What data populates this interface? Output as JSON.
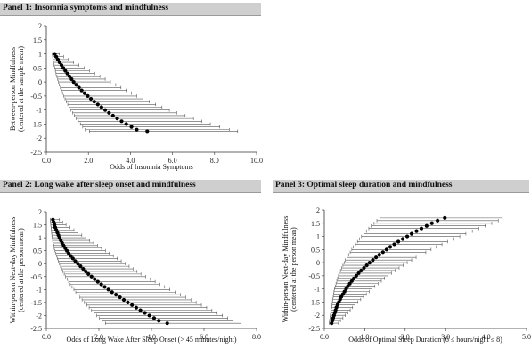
{
  "chart_data": [
    {
      "type": "scatter",
      "title": "Panel 1: Insomnia symptoms and mindfulness",
      "xlabel": "Odds of Insomnia Symptoms",
      "ylabel": [
        "Between-person Mindfulness",
        "(centered at the sample mean)"
      ],
      "xlim": [
        0,
        10
      ],
      "ylim": [
        -2.5,
        2
      ],
      "xticks": [
        "0.0",
        "2.0",
        "4.0",
        "6.0",
        "8.0",
        "10.0"
      ],
      "yticks": [
        "2",
        "1.5",
        "1",
        "0.5",
        "0",
        "-0.5",
        "-1",
        "-1.5",
        "-2",
        "-2.5"
      ],
      "grid": false,
      "series": [
        {
          "points": [
            {
              "y": 1.0,
              "x": 0.4,
              "lo": 0.28,
              "hi": 0.62
            },
            {
              "y": 0.9,
              "x": 0.47,
              "lo": 0.3,
              "hi": 0.82
            },
            {
              "y": 0.8,
              "x": 0.55,
              "lo": 0.32,
              "hi": 1.05
            },
            {
              "y": 0.7,
              "x": 0.63,
              "lo": 0.34,
              "hi": 1.3
            },
            {
              "y": 0.6,
              "x": 0.72,
              "lo": 0.37,
              "hi": 1.55
            },
            {
              "y": 0.5,
              "x": 0.81,
              "lo": 0.4,
              "hi": 1.8
            },
            {
              "y": 0.4,
              "x": 0.9,
              "lo": 0.43,
              "hi": 2.05
            },
            {
              "y": 0.3,
              "x": 1.0,
              "lo": 0.46,
              "hi": 2.3
            },
            {
              "y": 0.2,
              "x": 1.1,
              "lo": 0.5,
              "hi": 2.55
            },
            {
              "y": 0.1,
              "x": 1.2,
              "lo": 0.54,
              "hi": 2.8
            },
            {
              "y": 0.0,
              "x": 1.3,
              "lo": 0.58,
              "hi": 3.05
            },
            {
              "y": -0.1,
              "x": 1.42,
              "lo": 0.62,
              "hi": 3.3
            },
            {
              "y": -0.2,
              "x": 1.55,
              "lo": 0.67,
              "hi": 3.55
            },
            {
              "y": -0.3,
              "x": 1.68,
              "lo": 0.72,
              "hi": 3.8
            },
            {
              "y": -0.4,
              "x": 1.82,
              "lo": 0.77,
              "hi": 4.05
            },
            {
              "y": -0.5,
              "x": 1.97,
              "lo": 0.83,
              "hi": 4.3
            },
            {
              "y": -0.6,
              "x": 2.12,
              "lo": 0.89,
              "hi": 4.6
            },
            {
              "y": -0.7,
              "x": 2.28,
              "lo": 0.95,
              "hi": 4.9
            },
            {
              "y": -0.8,
              "x": 2.45,
              "lo": 1.02,
              "hi": 5.2
            },
            {
              "y": -0.9,
              "x": 2.62,
              "lo": 1.09,
              "hi": 5.5
            },
            {
              "y": -1.0,
              "x": 2.8,
              "lo": 1.17,
              "hi": 5.85
            },
            {
              "y": -1.1,
              "x": 2.98,
              "lo": 1.25,
              "hi": 6.2
            },
            {
              "y": -1.2,
              "x": 3.17,
              "lo": 1.33,
              "hi": 6.6
            },
            {
              "y": -1.3,
              "x": 3.37,
              "lo": 1.42,
              "hi": 7.0
            },
            {
              "y": -1.4,
              "x": 3.58,
              "lo": 1.52,
              "hi": 7.4
            },
            {
              "y": -1.5,
              "x": 3.8,
              "lo": 1.62,
              "hi": 7.8
            },
            {
              "y": -1.6,
              "x": 4.05,
              "lo": 1.73,
              "hi": 8.25
            },
            {
              "y": -1.7,
              "x": 4.3,
              "lo": 1.85,
              "hi": 8.7
            },
            {
              "y": -1.75,
              "x": 4.8,
              "lo": 2.05,
              "hi": 9.1
            }
          ]
        }
      ]
    },
    {
      "type": "scatter",
      "title": "Panel 2: Long wake after sleep onset and mindfulness",
      "xlabel": "Odds of Long Wake After Sleep Onset (> 45 minutes/night)",
      "ylabel": [
        "Within-person Next-day Mindfulness",
        "(centered at the person mean)"
      ],
      "xlim": [
        0,
        8
      ],
      "ylim": [
        -2.5,
        2
      ],
      "xticks": [
        "0.0",
        "2.0",
        "4.0",
        "6.0",
        "8.0"
      ],
      "yticks": [
        "2",
        "1.5",
        "1",
        "0.5",
        "0",
        "-0.5",
        "-1",
        "-1.5",
        "-2",
        "-2.5"
      ],
      "grid": false,
      "series": [
        {
          "points": [
            {
              "y": 1.7,
              "x": 0.25,
              "lo": 0.15,
              "hi": 0.5
            },
            {
              "y": 1.6,
              "x": 0.28,
              "lo": 0.16,
              "hi": 0.62
            },
            {
              "y": 1.5,
              "x": 0.31,
              "lo": 0.17,
              "hi": 0.75
            },
            {
              "y": 1.4,
              "x": 0.34,
              "lo": 0.18,
              "hi": 0.9
            },
            {
              "y": 1.3,
              "x": 0.38,
              "lo": 0.19,
              "hi": 1.05
            },
            {
              "y": 1.2,
              "x": 0.42,
              "lo": 0.2,
              "hi": 1.2
            },
            {
              "y": 1.1,
              "x": 0.46,
              "lo": 0.21,
              "hi": 1.35
            },
            {
              "y": 1.0,
              "x": 0.5,
              "lo": 0.22,
              "hi": 1.5
            },
            {
              "y": 0.9,
              "x": 0.55,
              "lo": 0.24,
              "hi": 1.65
            },
            {
              "y": 0.8,
              "x": 0.6,
              "lo": 0.26,
              "hi": 1.8
            },
            {
              "y": 0.7,
              "x": 0.66,
              "lo": 0.28,
              "hi": 1.95
            },
            {
              "y": 0.6,
              "x": 0.72,
              "lo": 0.3,
              "hi": 2.1
            },
            {
              "y": 0.5,
              "x": 0.78,
              "lo": 0.33,
              "hi": 2.25
            },
            {
              "y": 0.4,
              "x": 0.85,
              "lo": 0.36,
              "hi": 2.4
            },
            {
              "y": 0.3,
              "x": 0.93,
              "lo": 0.39,
              "hi": 2.55
            },
            {
              "y": 0.2,
              "x": 1.01,
              "lo": 0.42,
              "hi": 2.7
            },
            {
              "y": 0.1,
              "x": 1.1,
              "lo": 0.46,
              "hi": 2.85
            },
            {
              "y": 0.0,
              "x": 1.2,
              "lo": 0.5,
              "hi": 3.0
            },
            {
              "y": -0.1,
              "x": 1.3,
              "lo": 0.54,
              "hi": 3.15
            },
            {
              "y": -0.2,
              "x": 1.4,
              "lo": 0.58,
              "hi": 3.3
            },
            {
              "y": -0.3,
              "x": 1.5,
              "lo": 0.63,
              "hi": 3.45
            },
            {
              "y": -0.4,
              "x": 1.6,
              "lo": 0.68,
              "hi": 3.6
            },
            {
              "y": -0.5,
              "x": 1.72,
              "lo": 0.73,
              "hi": 3.78
            },
            {
              "y": -0.6,
              "x": 1.84,
              "lo": 0.79,
              "hi": 3.96
            },
            {
              "y": -0.7,
              "x": 1.96,
              "lo": 0.85,
              "hi": 4.14
            },
            {
              "y": -0.8,
              "x": 2.09,
              "lo": 0.91,
              "hi": 4.32
            },
            {
              "y": -0.9,
              "x": 2.22,
              "lo": 0.98,
              "hi": 4.5
            },
            {
              "y": -1.0,
              "x": 2.36,
              "lo": 1.05,
              "hi": 4.7
            },
            {
              "y": -1.1,
              "x": 2.5,
              "lo": 1.12,
              "hi": 4.9
            },
            {
              "y": -1.2,
              "x": 2.65,
              "lo": 1.2,
              "hi": 5.1
            },
            {
              "y": -1.3,
              "x": 2.8,
              "lo": 1.28,
              "hi": 5.3
            },
            {
              "y": -1.4,
              "x": 2.95,
              "lo": 1.36,
              "hi": 5.5
            },
            {
              "y": -1.5,
              "x": 3.1,
              "lo": 1.45,
              "hi": 5.7
            },
            {
              "y": -1.6,
              "x": 3.26,
              "lo": 1.54,
              "hi": 5.9
            },
            {
              "y": -1.7,
              "x": 3.42,
              "lo": 1.63,
              "hi": 6.1
            },
            {
              "y": -1.8,
              "x": 3.58,
              "lo": 1.72,
              "hi": 6.3
            },
            {
              "y": -1.9,
              "x": 3.75,
              "lo": 1.82,
              "hi": 6.5
            },
            {
              "y": -2.0,
              "x": 3.92,
              "lo": 1.92,
              "hi": 6.7
            },
            {
              "y": -2.1,
              "x": 4.1,
              "lo": 2.02,
              "hi": 6.9
            },
            {
              "y": -2.2,
              "x": 4.28,
              "lo": 2.12,
              "hi": 7.1
            },
            {
              "y": -2.3,
              "x": 4.6,
              "lo": 2.25,
              "hi": 7.4
            }
          ]
        }
      ]
    },
    {
      "type": "scatter",
      "title": "Panel 3: Optimal sleep duration and mindfulness",
      "xlabel": "Odds of Optimal Sleep Duration (6 ≤ hours/night ≤ 8)",
      "ylabel": [
        "Within-person Next-day Mindfulness",
        "(centered at the person mean)"
      ],
      "xlim": [
        0,
        5
      ],
      "ylim": [
        -2.5,
        2
      ],
      "xticks": [
        "0.0",
        "1.0",
        "2.0",
        "3.0",
        "4.0",
        "5.0"
      ],
      "yticks": [
        "2",
        "1.5",
        "1",
        "0.5",
        "0",
        "-0.5",
        "-1",
        "-1.5",
        "-2",
        "-2.5"
      ],
      "grid": false,
      "series": [
        {
          "points": [
            {
              "y": -2.3,
              "x": 0.18,
              "lo": 0.12,
              "hi": 0.35
            },
            {
              "y": -2.2,
              "x": 0.2,
              "lo": 0.13,
              "hi": 0.4
            },
            {
              "y": -2.1,
              "x": 0.22,
              "lo": 0.14,
              "hi": 0.46
            },
            {
              "y": -2.0,
              "x": 0.24,
              "lo": 0.15,
              "hi": 0.52
            },
            {
              "y": -1.9,
              "x": 0.26,
              "lo": 0.16,
              "hi": 0.58
            },
            {
              "y": -1.8,
              "x": 0.28,
              "lo": 0.17,
              "hi": 0.64
            },
            {
              "y": -1.7,
              "x": 0.3,
              "lo": 0.18,
              "hi": 0.7
            },
            {
              "y": -1.6,
              "x": 0.33,
              "lo": 0.19,
              "hi": 0.76
            },
            {
              "y": -1.5,
              "x": 0.36,
              "lo": 0.2,
              "hi": 0.83
            },
            {
              "y": -1.4,
              "x": 0.39,
              "lo": 0.21,
              "hi": 0.9
            },
            {
              "y": -1.3,
              "x": 0.42,
              "lo": 0.22,
              "hi": 0.97
            },
            {
              "y": -1.2,
              "x": 0.46,
              "lo": 0.23,
              "hi": 1.04
            },
            {
              "y": -1.1,
              "x": 0.5,
              "lo": 0.24,
              "hi": 1.11
            },
            {
              "y": -1.0,
              "x": 0.54,
              "lo": 0.25,
              "hi": 1.18
            },
            {
              "y": -0.9,
              "x": 0.58,
              "lo": 0.27,
              "hi": 1.25
            },
            {
              "y": -0.8,
              "x": 0.63,
              "lo": 0.29,
              "hi": 1.33
            },
            {
              "y": -0.7,
              "x": 0.68,
              "lo": 0.31,
              "hi": 1.41
            },
            {
              "y": -0.6,
              "x": 0.73,
              "lo": 0.33,
              "hi": 1.49
            },
            {
              "y": -0.5,
              "x": 0.79,
              "lo": 0.35,
              "hi": 1.57
            },
            {
              "y": -0.4,
              "x": 0.85,
              "lo": 0.37,
              "hi": 1.66
            },
            {
              "y": -0.3,
              "x": 0.91,
              "lo": 0.4,
              "hi": 1.75
            },
            {
              "y": -0.2,
              "x": 0.98,
              "lo": 0.43,
              "hi": 1.85
            },
            {
              "y": -0.1,
              "x": 1.05,
              "lo": 0.46,
              "hi": 1.95
            },
            {
              "y": 0.0,
              "x": 1.12,
              "lo": 0.49,
              "hi": 2.05
            },
            {
              "y": 0.1,
              "x": 1.2,
              "lo": 0.52,
              "hi": 2.16
            },
            {
              "y": 0.2,
              "x": 1.28,
              "lo": 0.56,
              "hi": 2.27
            },
            {
              "y": 0.3,
              "x": 1.36,
              "lo": 0.6,
              "hi": 2.39
            },
            {
              "y": 0.4,
              "x": 1.45,
              "lo": 0.64,
              "hi": 2.51
            },
            {
              "y": 0.5,
              "x": 1.54,
              "lo": 0.68,
              "hi": 2.64
            },
            {
              "y": 0.6,
              "x": 1.63,
              "lo": 0.72,
              "hi": 2.77
            },
            {
              "y": 0.7,
              "x": 1.73,
              "lo": 0.77,
              "hi": 2.91
            },
            {
              "y": 0.8,
              "x": 1.83,
              "lo": 0.82,
              "hi": 3.05
            },
            {
              "y": 0.9,
              "x": 1.94,
              "lo": 0.87,
              "hi": 3.2
            },
            {
              "y": 1.0,
              "x": 2.05,
              "lo": 0.92,
              "hi": 3.35
            },
            {
              "y": 1.1,
              "x": 2.16,
              "lo": 0.98,
              "hi": 3.5
            },
            {
              "y": 1.2,
              "x": 2.28,
              "lo": 1.04,
              "hi": 3.66
            },
            {
              "y": 1.3,
              "x": 2.4,
              "lo": 1.1,
              "hi": 3.82
            },
            {
              "y": 1.4,
              "x": 2.53,
              "lo": 1.16,
              "hi": 3.98
            },
            {
              "y": 1.5,
              "x": 2.66,
              "lo": 1.23,
              "hi": 4.14
            },
            {
              "y": 1.6,
              "x": 2.8,
              "lo": 1.3,
              "hi": 4.3
            },
            {
              "y": 1.7,
              "x": 2.98,
              "lo": 1.38,
              "hi": 4.4
            }
          ]
        }
      ]
    }
  ]
}
